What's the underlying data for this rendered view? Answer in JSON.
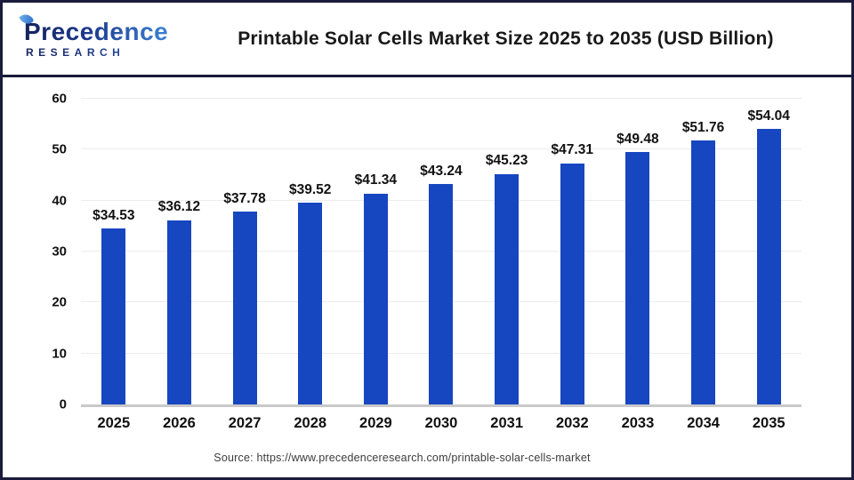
{
  "header": {
    "logo_line1": "Precedence",
    "logo_line2": "RESEARCH",
    "title": "Printable Solar Cells Market Size 2025 to 2035 (USD Billion)"
  },
  "chart_data": {
    "type": "bar",
    "title": "Printable Solar Cells Market Size 2025 to 2035 (USD Billion)",
    "categories": [
      "2025",
      "2026",
      "2027",
      "2028",
      "2029",
      "2030",
      "2031",
      "2032",
      "2033",
      "2034",
      "2035"
    ],
    "values": [
      34.53,
      36.12,
      37.78,
      39.52,
      41.34,
      43.24,
      45.23,
      47.31,
      49.48,
      51.76,
      54.04
    ],
    "value_labels": [
      "$34.53",
      "$36.12",
      "$37.78",
      "$39.52",
      "$41.34",
      "$43.24",
      "$45.23",
      "$47.31",
      "$49.48",
      "$51.76",
      "$54.04"
    ],
    "unit": "USD Billion",
    "xlabel": "",
    "ylabel": "",
    "ylim": [
      0,
      60
    ],
    "yticks": [
      0,
      10,
      20,
      30,
      40,
      50,
      60
    ],
    "grid": true,
    "legend": "none"
  },
  "footer": {
    "source": "Source: https://www.precedenceresearch.com/printable-solar-cells-market"
  },
  "colors": {
    "bar": "#1646C0",
    "frame": "#1B1B3C",
    "grid": "#ECECEC",
    "axis": "#C9C9C9"
  }
}
